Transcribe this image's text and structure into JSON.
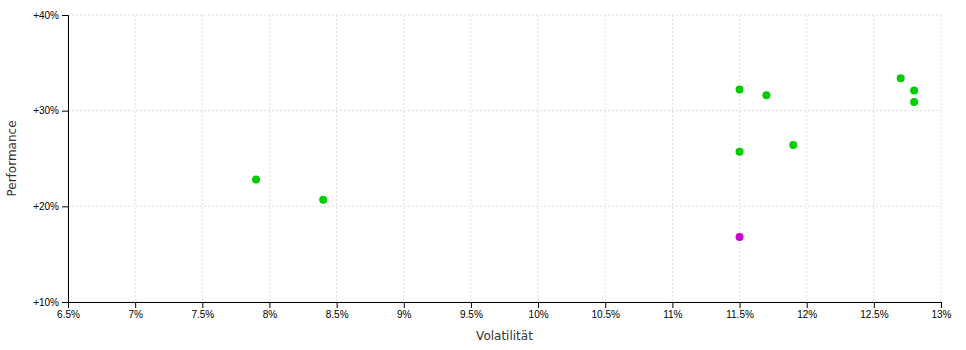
{
  "chart_data": {
    "type": "scatter",
    "xlabel": "Volatilität",
    "ylabel": "Performance",
    "xlim": [
      0.065,
      0.13
    ],
    "ylim": [
      0.1,
      0.4
    ],
    "xticks": [
      {
        "value": 0.065,
        "label": "6.5%"
      },
      {
        "value": 0.07,
        "label": "7%"
      },
      {
        "value": 0.075,
        "label": "7.5%"
      },
      {
        "value": 0.08,
        "label": "8%"
      },
      {
        "value": 0.085,
        "label": "8.5%"
      },
      {
        "value": 0.09,
        "label": "9%"
      },
      {
        "value": 0.095,
        "label": "9.5%"
      },
      {
        "value": 0.1,
        "label": "10%"
      },
      {
        "value": 0.105,
        "label": "10.5%"
      },
      {
        "value": 0.11,
        "label": "11%"
      },
      {
        "value": 0.115,
        "label": "11.5%"
      },
      {
        "value": 0.12,
        "label": "12%"
      },
      {
        "value": 0.125,
        "label": "12.5%"
      },
      {
        "value": 0.13,
        "label": "13%"
      }
    ],
    "yticks": [
      {
        "value": 0.1,
        "label": "+10%"
      },
      {
        "value": 0.2,
        "label": "+20%"
      },
      {
        "value": 0.3,
        "label": "+30%"
      },
      {
        "value": 0.4,
        "label": "+40%"
      }
    ],
    "grid": true,
    "series": [
      {
        "color": "#00cc00",
        "x": [
          0.079,
          0.084,
          0.115,
          0.119,
          0.115,
          0.117,
          0.127,
          0.128,
          0.128
        ],
        "values": [
          0.228,
          0.207,
          0.257,
          0.264,
          0.322,
          0.316,
          0.334,
          0.321,
          0.309
        ]
      },
      {
        "color": "#cc00cc",
        "x": [
          0.115
        ],
        "values": [
          0.168
        ]
      }
    ]
  }
}
